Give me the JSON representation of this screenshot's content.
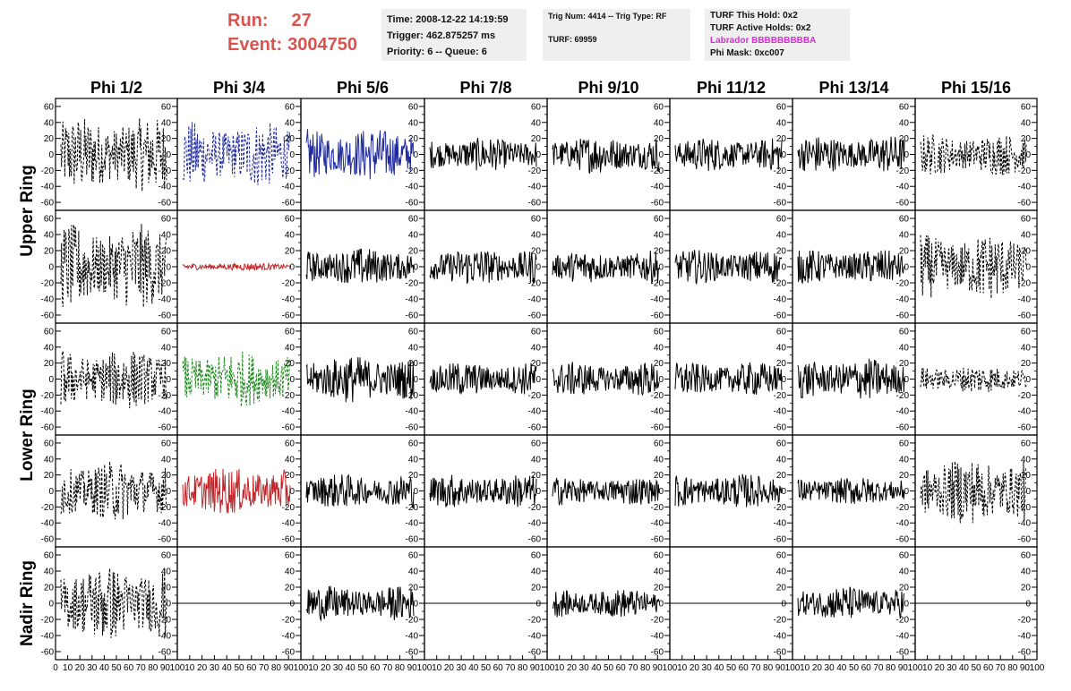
{
  "header": {
    "run_label": "Run:",
    "run_value": "27",
    "event_label": "Event:",
    "event_value": "3004750",
    "time": "Time: 2008-12-22 14:19:59",
    "trigger": "Trigger: 462.875257 ms",
    "priority": "Priority: 6 -- Queue: 6",
    "trig_num": "Trig Num: 4414 -- Trig Type: RF",
    "turf": "TURF: 69959",
    "turf_this_hold": "TURF This Hold: 0x2",
    "turf_active_holds": "TURF Active Holds: 0x2",
    "labrador": "Labrador BBBBBBBBBA",
    "phi_mask": "Phi Mask: 0xc007"
  },
  "colors": {
    "run_event": "#d9534f",
    "labrador": "#e02ad9",
    "blue": "#1f2a9e",
    "red": "#c0262a",
    "green": "#1f8a1f",
    "black": "#000000"
  },
  "chart_data": {
    "type": "line",
    "columns": [
      "Phi 1/2",
      "Phi 3/4",
      "Phi 5/6",
      "Phi 7/8",
      "Phi 9/10",
      "Phi 11/12",
      "Phi 13/14",
      "Phi 15/16"
    ],
    "rows": [
      "Upper Ring",
      "Lower Ring",
      "Nadir Ring"
    ],
    "y_range": [
      -70,
      70
    ],
    "y_ticks": [
      "60",
      "40",
      "20",
      "0",
      "-20",
      "-40",
      "-60"
    ],
    "x_range": [
      0,
      100
    ],
    "x_ticks": [
      "0",
      "10",
      "20",
      "30",
      "40",
      "50",
      "60",
      "70",
      "80",
      "90",
      "100"
    ],
    "panels": [
      [
        {
          "style": "dashed",
          "color": "black",
          "amp": 40
        },
        {
          "style": "dashed",
          "color": "blue",
          "amp": 35
        },
        {
          "style": "solid",
          "color": "blue",
          "amp": 28
        },
        {
          "style": "solid",
          "color": "black",
          "amp": 18
        },
        {
          "style": "solid",
          "color": "black",
          "amp": 20
        },
        {
          "style": "solid",
          "color": "black",
          "amp": 18
        },
        {
          "style": "solid",
          "color": "black",
          "amp": 20
        },
        {
          "style": "dashed",
          "color": "black",
          "amp": 22
        }
      ],
      [
        {
          "style": "dashed",
          "color": "black",
          "amp": 45
        },
        {
          "style": "solid",
          "color": "red",
          "amp": 4
        },
        {
          "style": "solid",
          "color": "black",
          "amp": 20
        },
        {
          "style": "solid",
          "color": "black",
          "amp": 20
        },
        {
          "style": "solid",
          "color": "black",
          "amp": 17
        },
        {
          "style": "solid",
          "color": "black",
          "amp": 18
        },
        {
          "style": "solid",
          "color": "black",
          "amp": 18
        },
        {
          "style": "dashed",
          "color": "black",
          "amp": 35
        }
      ],
      [
        {
          "style": "dashed",
          "color": "black",
          "amp": 32
        },
        {
          "style": "dashed",
          "color": "green",
          "amp": 30
        },
        {
          "style": "solid",
          "color": "black",
          "amp": 25
        },
        {
          "style": "solid",
          "color": "black",
          "amp": 18
        },
        {
          "style": "solid",
          "color": "black",
          "amp": 18
        },
        {
          "style": "solid",
          "color": "black",
          "amp": 18
        },
        {
          "style": "solid",
          "color": "black",
          "amp": 22
        },
        {
          "style": "dashed",
          "color": "black",
          "amp": 15
        }
      ],
      [
        {
          "style": "dashed",
          "color": "black",
          "amp": 32
        },
        {
          "style": "solid",
          "color": "red",
          "amp": 25
        },
        {
          "style": "solid",
          "color": "black",
          "amp": 18
        },
        {
          "style": "solid",
          "color": "black",
          "amp": 18
        },
        {
          "style": "solid",
          "color": "black",
          "amp": 15
        },
        {
          "style": "solid",
          "color": "black",
          "amp": 18
        },
        {
          "style": "solid",
          "color": "black",
          "amp": 15
        },
        {
          "style": "dashed",
          "color": "black",
          "amp": 35
        }
      ],
      [
        {
          "style": "dashed",
          "color": "black",
          "amp": 40
        },
        {
          "style": "flat",
          "color": "black",
          "amp": 0
        },
        {
          "style": "solid",
          "color": "black",
          "amp": 18
        },
        {
          "style": "flat",
          "color": "black",
          "amp": 0
        },
        {
          "style": "solid",
          "color": "black",
          "amp": 15
        },
        {
          "style": "flat",
          "color": "black",
          "amp": 0
        },
        {
          "style": "solid",
          "color": "black",
          "amp": 18
        },
        {
          "style": "flat",
          "color": "black",
          "amp": 0
        }
      ]
    ]
  }
}
